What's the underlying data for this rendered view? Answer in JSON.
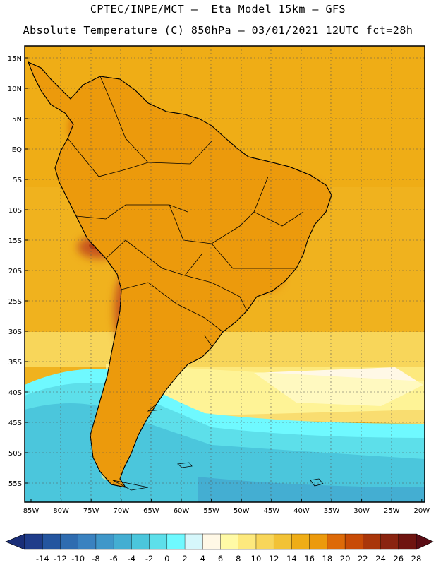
{
  "header": {
    "line1": "CPTEC/INPE/MCT –  Eta Model 15km – GFS",
    "line2": "Absolute Temperature (C) 850hPa – 03/01/2021 12UTC fct=28h"
  },
  "map": {
    "lat_ticks": [
      "15N",
      "10N",
      "5N",
      "EQ",
      "5S",
      "10S",
      "15S",
      "20S",
      "25S",
      "30S",
      "35S",
      "40S",
      "45S",
      "50S",
      "55S"
    ],
    "lon_ticks": [
      "85W",
      "80W",
      "75W",
      "70W",
      "65W",
      "60W",
      "55W",
      "50W",
      "45W",
      "40W",
      "35W",
      "30W",
      "25W",
      "20W"
    ],
    "bounds": {
      "west": -86,
      "east": -19,
      "north": 16,
      "south": -59
    }
  },
  "colorbar": {
    "labels": [
      "-14",
      "-12",
      "-10",
      "-8",
      "-6",
      "-4",
      "-2",
      "0",
      "2",
      "4",
      "6",
      "8",
      "10",
      "12",
      "14",
      "16",
      "18",
      "20",
      "22",
      "24",
      "26",
      "28"
    ],
    "colors": [
      "#1f3c8a",
      "#24559f",
      "#2f6cb0",
      "#3a82c0",
      "#3f97c9",
      "#44aed2",
      "#4bc6dc",
      "#5ddfea",
      "#6ff9ff",
      "#d6f7fb",
      "#fff8e6",
      "#fffaa6",
      "#fde97d",
      "#f8d65a",
      "#f2c236",
      "#efad16",
      "#ec9a0c",
      "#dd6a08",
      "#c84b06",
      "#a9360a",
      "#8a2410",
      "#6f1410"
    ]
  },
  "colors": {
    "warm_ocean": "#f0b21e",
    "land_warm": "#ec9a0c",
    "hot_core": "#c8561a",
    "cold_south": "#4bc6dc"
  }
}
